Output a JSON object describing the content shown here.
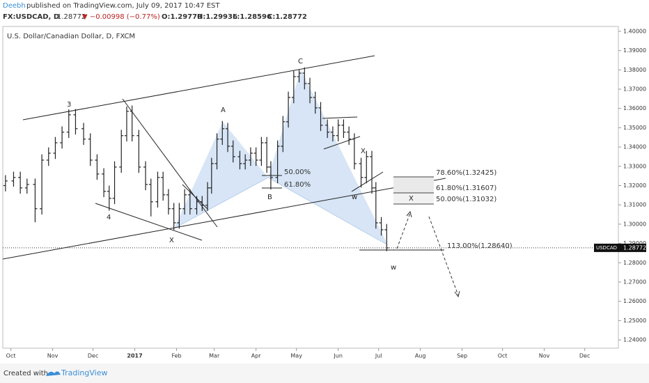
{
  "header": {
    "author": "Deebh",
    "published": "published on TradingView.com, July 09, 2017 10:47 EST"
  },
  "chart_data": {
    "type": "ohlc",
    "symbol": "FX:USDCAD, D",
    "symbol_price": "1.28772",
    "symbol_change": "▼ −0.00998 (−0.77%)",
    "symbol_ohlc": [
      "O:1.29770",
      "H:1.29936",
      "L:1.28596",
      "C:1.28772"
    ],
    "title": "U.S. Dollar/Canadian Dollar, D, FXCM",
    "ticker": "USDCAD",
    "last_price": 1.28772,
    "color": "#222222",
    "x": [
      -4,
      2,
      7,
      12,
      18,
      23,
      28,
      33,
      38,
      43,
      48,
      54,
      59,
      64,
      69,
      73,
      77,
      82,
      86,
      90,
      95,
      100,
      104,
      109,
      113,
      117,
      121,
      125,
      129,
      133,
      138,
      142,
      146,
      149,
      153,
      157,
      161,
      165,
      170,
      174,
      178,
      182,
      186,
      190,
      193,
      198,
      202,
      206,
      210,
      214,
      218,
      222,
      226,
      230,
      235,
      239,
      243,
      247,
      251,
      255,
      260,
      264,
      268,
      271,
      275,
      279
    ],
    "open": [
      1.32,
      1.3224,
      1.3242,
      1.3188,
      1.3206,
      1.308,
      1.3332,
      1.3368,
      1.3422,
      1.3477,
      1.3567,
      1.3495,
      1.3441,
      1.3332,
      1.326,
      1.317,
      1.3134,
      1.3296,
      1.3459,
      1.3585,
      1.3459,
      1.3296,
      1.3206,
      1.3116,
      1.3242,
      1.3152,
      1.308,
      1.3007,
      1.308,
      1.3152,
      1.308,
      1.3116,
      1.3098,
      1.3188,
      1.3314,
      1.3441,
      1.3495,
      1.3404,
      1.335,
      1.3314,
      1.3332,
      1.3368,
      1.3332,
      1.3422,
      1.3296,
      1.3242,
      1.3404,
      1.3531,
      1.3657,
      1.3765,
      1.3783,
      1.3729,
      1.3657,
      1.3603,
      1.3513,
      1.3477,
      1.3459,
      1.3513,
      1.3477,
      1.3441,
      1.3314,
      1.3242,
      1.335,
      1.3188,
      1.3007,
      1.2971
    ],
    "high": [
      1.3254,
      1.3272,
      1.3272,
      1.3236,
      1.3236,
      1.3362,
      1.3398,
      1.3452,
      1.3507,
      1.3595,
      1.3597,
      1.3525,
      1.3471,
      1.3362,
      1.329,
      1.32,
      1.3326,
      1.3489,
      1.361,
      1.3615,
      1.3489,
      1.3326,
      1.3236,
      1.3272,
      1.3272,
      1.3182,
      1.311,
      1.311,
      1.3182,
      1.3182,
      1.3146,
      1.3146,
      1.3218,
      1.3344,
      1.3471,
      1.3535,
      1.3525,
      1.3434,
      1.338,
      1.3362,
      1.3398,
      1.3398,
      1.3452,
      1.3452,
      1.3326,
      1.3434,
      1.3561,
      1.3687,
      1.3795,
      1.38,
      1.3813,
      1.3759,
      1.3687,
      1.3633,
      1.3543,
      1.3507,
      1.3543,
      1.3543,
      1.3507,
      1.3471,
      1.3344,
      1.338,
      1.338,
      1.3218,
      1.3037,
      1.3001
    ],
    "low": [
      1.317,
      1.3194,
      1.3158,
      1.3158,
      1.301,
      1.305,
      1.3302,
      1.3338,
      1.3392,
      1.3447,
      1.3465,
      1.3411,
      1.3302,
      1.323,
      1.314,
      1.307,
      1.3104,
      1.3266,
      1.3429,
      1.3429,
      1.3266,
      1.3176,
      1.304,
      1.3086,
      1.3122,
      1.305,
      1.297,
      1.2977,
      1.305,
      1.305,
      1.305,
      1.3068,
      1.3068,
      1.3158,
      1.3284,
      1.3411,
      1.3374,
      1.332,
      1.3284,
      1.3284,
      1.3302,
      1.3302,
      1.3302,
      1.3266,
      1.318,
      1.3212,
      1.3374,
      1.3501,
      1.3627,
      1.3735,
      1.3699,
      1.3627,
      1.3573,
      1.3483,
      1.3447,
      1.3429,
      1.3429,
      1.3447,
      1.3411,
      1.3284,
      1.319,
      1.3212,
      1.3158,
      1.2977,
      1.2941,
      1.286
    ],
    "close": [
      1.3224,
      1.3242,
      1.3188,
      1.3206,
      1.308,
      1.3332,
      1.3368,
      1.3422,
      1.3477,
      1.3567,
      1.3495,
      1.3441,
      1.3332,
      1.326,
      1.317,
      1.3134,
      1.3296,
      1.3459,
      1.3585,
      1.3459,
      1.3296,
      1.3206,
      1.3116,
      1.3242,
      1.3152,
      1.308,
      1.3007,
      1.308,
      1.3152,
      1.308,
      1.3116,
      1.3098,
      1.3188,
      1.3314,
      1.3441,
      1.3495,
      1.3404,
      1.335,
      1.3314,
      1.3332,
      1.3368,
      1.3332,
      1.3422,
      1.3296,
      1.3242,
      1.3404,
      1.3531,
      1.3657,
      1.3765,
      1.3783,
      1.3729,
      1.3657,
      1.3603,
      1.3513,
      1.3477,
      1.3459,
      1.3513,
      1.3477,
      1.3441,
      1.3314,
      1.3242,
      1.335,
      1.3188,
      1.3007,
      1.2971,
      1.2877
    ],
    "xlim": [
      -6,
      451
    ],
    "xticks": [
      {
        "value": 0,
        "label": "Oct"
      },
      {
        "value": 31,
        "label": "Nov"
      },
      {
        "value": 61,
        "label": "Dec"
      },
      {
        "value": 92,
        "label": "2017"
      },
      {
        "value": 123,
        "label": "Feb"
      },
      {
        "value": 151,
        "label": "Mar"
      },
      {
        "value": 182,
        "label": "Apr"
      },
      {
        "value": 212,
        "label": "May"
      },
      {
        "value": 243,
        "label": "Jun"
      },
      {
        "value": 273,
        "label": "Jul"
      },
      {
        "value": 304,
        "label": "Aug"
      },
      {
        "value": 335,
        "label": "Sep"
      },
      {
        "value": 365,
        "label": "Oct"
      },
      {
        "value": 396,
        "label": "Nov"
      },
      {
        "value": 426,
        "label": "Dec"
      }
    ],
    "ylim": [
      1.2357,
      1.4025
    ],
    "yticks": [
      {
        "value": 1.4,
        "label": "1.40000"
      },
      {
        "value": 1.39,
        "label": "1.39000"
      },
      {
        "value": 1.38,
        "label": "1.38000"
      },
      {
        "value": 1.37,
        "label": "1.37000"
      },
      {
        "value": 1.36,
        "label": "1.36000"
      },
      {
        "value": 1.35,
        "label": "1.35000"
      },
      {
        "value": 1.34,
        "label": "1.34000"
      },
      {
        "value": 1.33,
        "label": "1.33000"
      },
      {
        "value": 1.32,
        "label": "1.32000"
      },
      {
        "value": 1.31,
        "label": "1.31000"
      },
      {
        "value": 1.3,
        "label": "1.30000"
      },
      {
        "value": 1.29,
        "label": "1.29000"
      },
      {
        "value": 1.28,
        "label": "1.28000"
      },
      {
        "value": 1.27,
        "label": "1.27000"
      },
      {
        "value": 1.26,
        "label": "1.26000"
      },
      {
        "value": 1.25,
        "label": "1.25000"
      },
      {
        "value": 1.24,
        "label": "1.24000"
      }
    ],
    "grid": false,
    "annotations": [
      "3",
      "4",
      "X",
      "A",
      "B",
      "C",
      "X",
      "w",
      "w",
      "50.00%",
      "61.80%",
      "78.60%(1.32425)",
      "61.80%(1.31607)",
      "50.00%(1.31032)",
      "X",
      "113.00%(1.28640)"
    ]
  },
  "footer": {
    "created": "Created with",
    "brand": "TradingView"
  }
}
